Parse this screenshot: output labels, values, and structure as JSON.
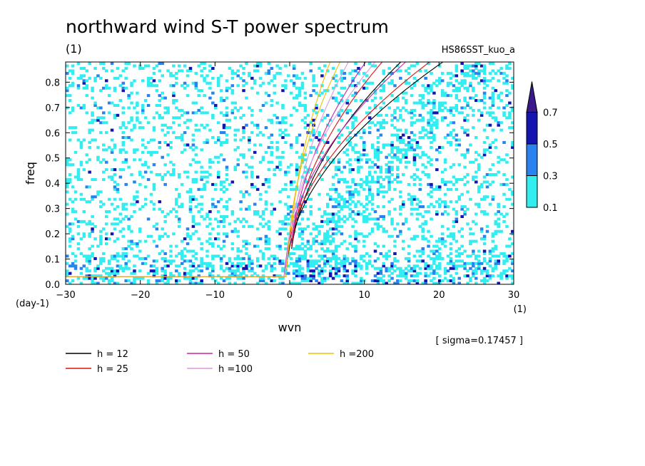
{
  "chart_data": {
    "type": "heatmap",
    "title": "northward wind S-T power spectrum",
    "subtitle_left": "(1)",
    "subtitle_right": "HS86SST_kuo_a",
    "xlabel": "wvn",
    "ylabel": "freq",
    "xunit": "(1)",
    "yunit": "(day-1)",
    "xlim": [
      -30,
      30
    ],
    "ylim": [
      0,
      0.88
    ],
    "xticks": [
      -30,
      -20,
      -10,
      0,
      10,
      20,
      30
    ],
    "xtick_labels": [
      "-30",
      "-20",
      "-10",
      "0",
      "10",
      "20",
      "30"
    ],
    "yticks": [
      0,
      0.1,
      0.2,
      0.3,
      0.4,
      0.5,
      0.6,
      0.7,
      0.8
    ],
    "ytick_labels": [
      "0.0",
      "0.1",
      "0.2",
      "0.3",
      "0.4",
      "0.5",
      "0.6",
      "0.7",
      "0.8"
    ],
    "colorbar": {
      "levels": [
        0.1,
        0.3,
        0.5,
        0.7
      ],
      "labels": [
        "0.1",
        "0.3",
        "0.5",
        "0.7"
      ],
      "colors": [
        "#33eef0",
        "#2a82ee",
        "#1414b0",
        "#3a1a8a"
      ]
    },
    "sigma_note": "[ sigma=0.17457 ]",
    "dispersion_legend": [
      {
        "label": "h = 12",
        "color": "#000000"
      },
      {
        "label": "h = 25",
        "color": "#dd1111"
      },
      {
        "label": "h = 50",
        "color": "#cc22aa"
      },
      {
        "label": "h =100",
        "color": "#dd99dd"
      },
      {
        "label": "h =200",
        "color": "#f0c000"
      }
    ]
  }
}
